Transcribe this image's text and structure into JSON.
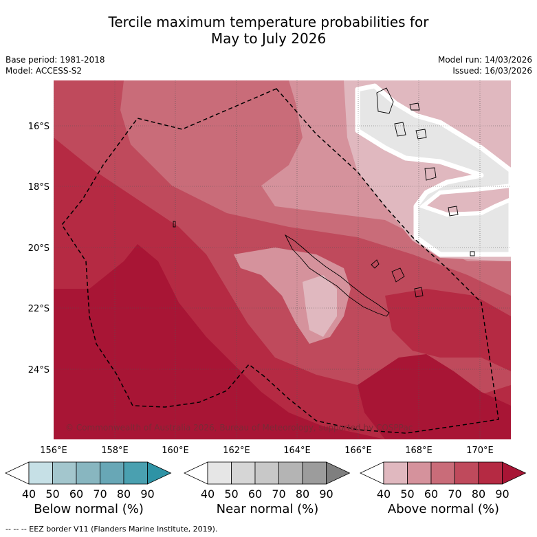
{
  "title": {
    "line1": "Tercile maximum temperature probabilities for",
    "line2": "May to July 2026"
  },
  "meta": {
    "base_period": "Base period: 1981-2018",
    "model": "Model: ACCESS-S2",
    "model_run": "Model run: 14/03/2026",
    "issued": "Issued: 16/03/2026"
  },
  "map": {
    "lat_labels": [
      "16°S",
      "18°S",
      "20°S",
      "22°S",
      "24°S"
    ],
    "lon_labels": [
      "156°E",
      "158°E",
      "160°E",
      "162°E",
      "164°E",
      "166°E",
      "168°E",
      "170°E"
    ],
    "copyright": "© Commonwealth of Australia 2026, Bureau of Meteorology, supported by COSPPac",
    "category_colors": {
      "above_40": "#e0b8bf",
      "above_50": "#d5929c",
      "above_60": "#c96c79",
      "above_70": "#bf4a5c",
      "above_80": "#b52a43",
      "above_90": "#a81535",
      "near_normal": "#e6e6e6"
    }
  },
  "colorbars": [
    {
      "name": "below",
      "label": "Below normal (%)",
      "ticks": [
        "40",
        "50",
        "60",
        "70",
        "80",
        "90"
      ],
      "colors": [
        "#ffffff",
        "#c6e0e6",
        "#a3c6cd",
        "#88b6c0",
        "#68a7b6",
        "#4aa0b0",
        "#2e93a5"
      ]
    },
    {
      "name": "near",
      "label": "Near normal (%)",
      "ticks": [
        "40",
        "50",
        "60",
        "70",
        "80",
        "90"
      ],
      "colors": [
        "#ffffff",
        "#e6e6e6",
        "#d6d6d6",
        "#c8c8c8",
        "#b4b4b4",
        "#9c9c9c",
        "#7f7f7f"
      ]
    },
    {
      "name": "above",
      "label": "Above normal (%)",
      "ticks": [
        "40",
        "50",
        "60",
        "70",
        "80",
        "90"
      ],
      "colors": [
        "#ffffff",
        "#e0b8bf",
        "#d5929c",
        "#c96c79",
        "#bf4a5c",
        "#b52a43",
        "#a81535"
      ]
    }
  ],
  "footer": "--  --  -- EEZ border V11 (Flanders Marine Institute, 2019)."
}
